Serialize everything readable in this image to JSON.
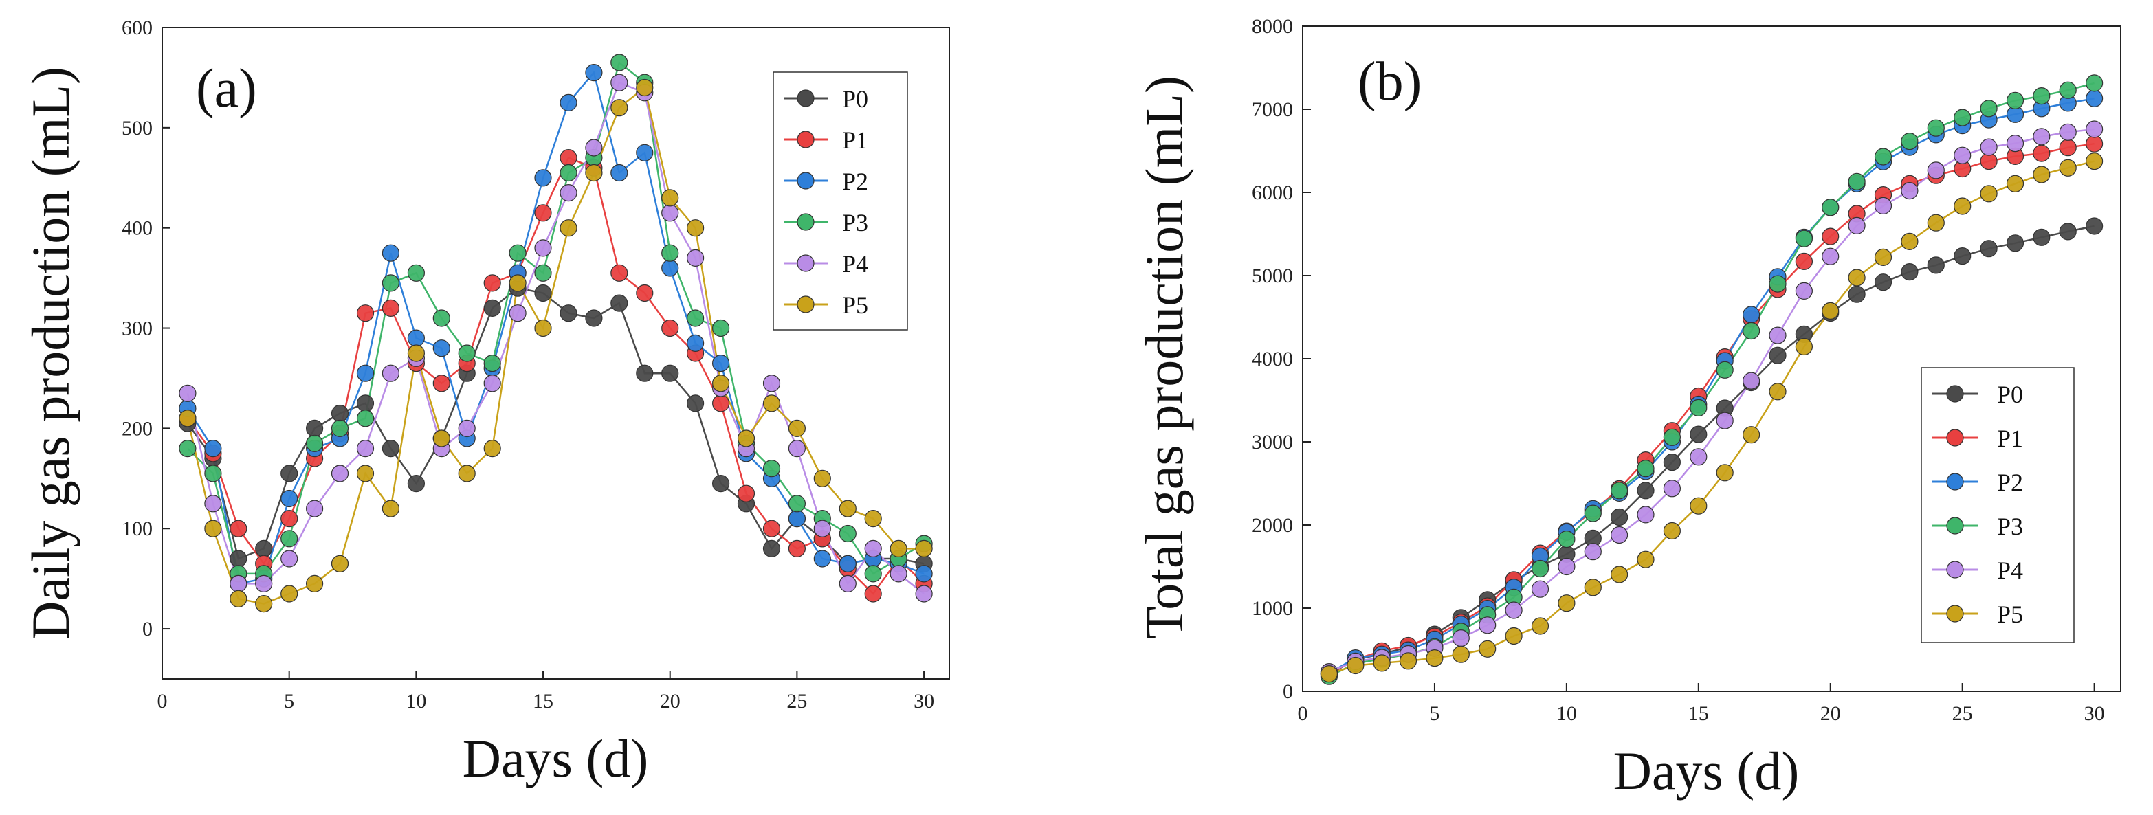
{
  "colors": {
    "P0": "#4a4a4a",
    "P1": "#e84040",
    "P2": "#2e7fd9",
    "P3": "#3fb56a",
    "P4": "#b98ce6",
    "P5": "#c9a21a"
  },
  "chart_data": [
    {
      "type": "line",
      "panel_label": "(a)",
      "title": "",
      "xlabel": "Days (d)",
      "ylabel": "Daily gas production (mL)",
      "xlim": [
        0,
        31
      ],
      "ylim": [
        -50,
        600
      ],
      "xticks": [
        0,
        5,
        10,
        15,
        20,
        25,
        30
      ],
      "yticks": [
        0,
        100,
        200,
        300,
        400,
        500,
        600
      ],
      "legend_position": "top-right",
      "x": [
        1,
        2,
        3,
        4,
        5,
        6,
        7,
        8,
        9,
        10,
        11,
        12,
        13,
        14,
        15,
        16,
        17,
        18,
        19,
        20,
        21,
        22,
        23,
        24,
        25,
        26,
        27,
        28,
        29,
        30
      ],
      "series": [
        {
          "name": "P0",
          "values": [
            205,
            170,
            70,
            80,
            155,
            200,
            215,
            225,
            180,
            145,
            190,
            255,
            320,
            340,
            335,
            315,
            310,
            325,
            255,
            255,
            225,
            145,
            125,
            80,
            110,
            90,
            65,
            70,
            70,
            65
          ]
        },
        {
          "name": "P1",
          "values": [
            210,
            175,
            100,
            65,
            110,
            170,
            195,
            315,
            320,
            265,
            245,
            265,
            345,
            355,
            415,
            470,
            460,
            355,
            335,
            300,
            275,
            225,
            135,
            100,
            80,
            90,
            60,
            35,
            70,
            45
          ]
        },
        {
          "name": "P2",
          "values": [
            220,
            180,
            45,
            50,
            130,
            180,
            190,
            255,
            375,
            290,
            280,
            190,
            260,
            355,
            450,
            525,
            555,
            455,
            475,
            360,
            285,
            265,
            175,
            150,
            110,
            70,
            65,
            70,
            65,
            55
          ]
        },
        {
          "name": "P3",
          "values": [
            180,
            155,
            55,
            55,
            90,
            185,
            200,
            210,
            345,
            355,
            310,
            275,
            265,
            375,
            355,
            455,
            470,
            565,
            545,
            375,
            310,
            300,
            185,
            160,
            125,
            110,
            95,
            55,
            70,
            85
          ]
        },
        {
          "name": "P4",
          "values": [
            235,
            125,
            45,
            45,
            70,
            120,
            155,
            180,
            255,
            270,
            180,
            200,
            245,
            315,
            380,
            435,
            480,
            545,
            535,
            415,
            370,
            240,
            180,
            245,
            180,
            100,
            45,
            80,
            55,
            35
          ]
        },
        {
          "name": "P5",
          "values": [
            210,
            100,
            30,
            25,
            35,
            45,
            65,
            155,
            120,
            275,
            190,
            155,
            180,
            345,
            300,
            400,
            455,
            520,
            540,
            430,
            400,
            245,
            190,
            225,
            200,
            150,
            120,
            110,
            80,
            80
          ]
        }
      ]
    },
    {
      "type": "line",
      "panel_label": "(b)",
      "title": "",
      "xlabel": "Days (d)",
      "ylabel": "Total gas production (mL)",
      "xlim": [
        0,
        31
      ],
      "ylim": [
        0,
        8000
      ],
      "xticks": [
        0,
        5,
        10,
        15,
        20,
        25,
        30
      ],
      "yticks": [
        0,
        1000,
        2000,
        3000,
        4000,
        5000,
        6000,
        7000,
        8000
      ],
      "legend_position": "bottom-right",
      "x": [
        1,
        2,
        3,
        4,
        5,
        6,
        7,
        8,
        9,
        10,
        11,
        12,
        13,
        14,
        15,
        16,
        17,
        18,
        19,
        20,
        21,
        22,
        23,
        24,
        25,
        26,
        27,
        28,
        29,
        30
      ],
      "series": [
        {
          "name": "P0",
          "values": [
            205,
            380,
            450,
            530,
            685,
            885,
            1100,
            1325,
            1505,
            1650,
            1840,
            2095,
            2415,
            2755,
            3090,
            3405,
            3715,
            4040,
            4295,
            4550,
            4775,
            4920,
            5045,
            5125,
            5235,
            5325,
            5390,
            5460,
            5530,
            5595
          ]
        },
        {
          "name": "P1",
          "values": [
            210,
            385,
            485,
            550,
            660,
            830,
            1025,
            1340,
            1660,
            1925,
            2170,
            2435,
            2780,
            3135,
            3550,
            4020,
            4480,
            4835,
            5170,
            5470,
            5745,
            5970,
            6105,
            6205,
            6285,
            6375,
            6435,
            6470,
            6540,
            6585
          ]
        },
        {
          "name": "P2",
          "values": [
            220,
            400,
            445,
            495,
            625,
            805,
            995,
            1250,
            1625,
            1915,
            2195,
            2385,
            2645,
            3000,
            3450,
            3975,
            4530,
            4985,
            5460,
            5820,
            6105,
            6370,
            6545,
            6695,
            6805,
            6875,
            6940,
            7010,
            7075,
            7130
          ]
        },
        {
          "name": "P3",
          "values": [
            180,
            335,
            390,
            445,
            535,
            720,
            920,
            1130,
            1475,
            1830,
            2140,
            2415,
            2680,
            3055,
            3410,
            3865,
            4335,
            4900,
            5445,
            5820,
            6130,
            6430,
            6615,
            6775,
            6900,
            7010,
            7105,
            7160,
            7230,
            7315
          ]
        },
        {
          "name": "P4",
          "values": [
            235,
            360,
            405,
            450,
            520,
            640,
            795,
            975,
            1230,
            1500,
            1680,
            1880,
            2125,
            2440,
            2820,
            3255,
            3735,
            4280,
            4815,
            5230,
            5600,
            5840,
            6020,
            6265,
            6445,
            6545,
            6590,
            6670,
            6725,
            6760
          ]
        },
        {
          "name": "P5",
          "values": [
            210,
            310,
            340,
            365,
            400,
            445,
            510,
            665,
            785,
            1060,
            1250,
            1405,
            1585,
            1930,
            2230,
            2630,
            3085,
            3605,
            4145,
            4575,
            4975,
            5220,
            5410,
            5635,
            5835,
            5985,
            6105,
            6215,
            6295,
            6375
          ]
        }
      ]
    }
  ]
}
